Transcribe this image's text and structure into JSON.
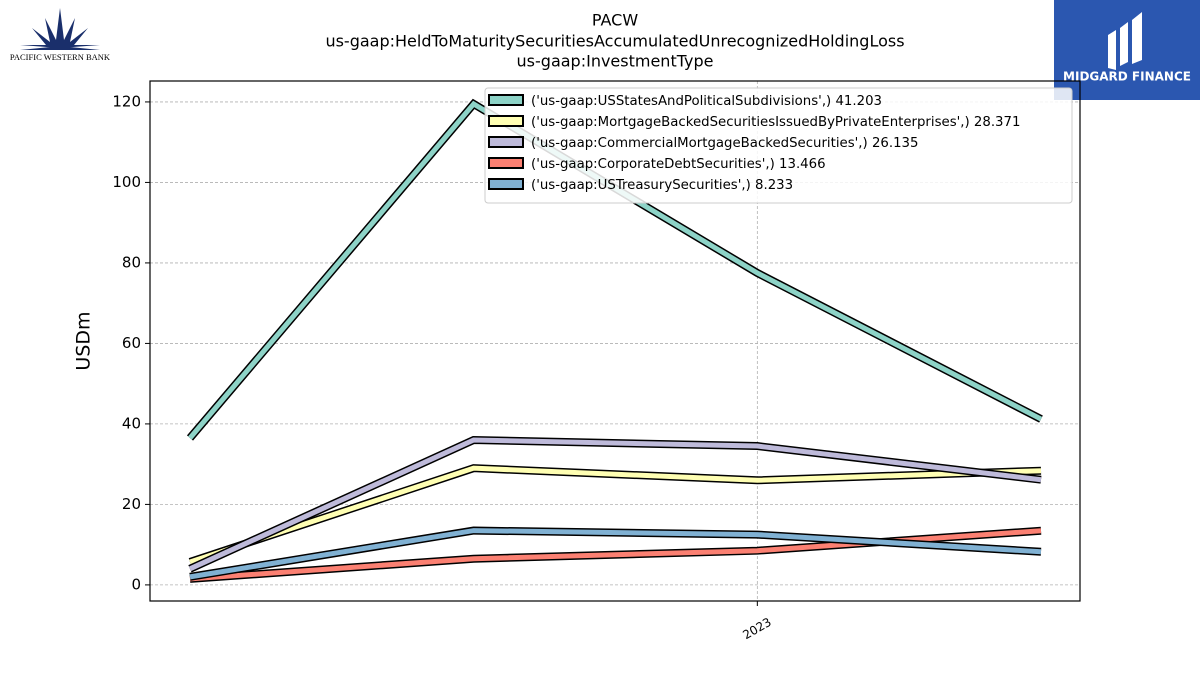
{
  "logos": {
    "left": "PACIFIC WESTERN BANK",
    "right": "MIDGARD FINANCE"
  },
  "chart_data": {
    "type": "line",
    "title": [
      "PACW",
      "us-gaap:HeldToMaturitySecuritiesAccumulatedUnrecognizedHoldingLoss",
      "us-gaap:InvestmentType"
    ],
    "y_label": "USDm",
    "categories": [
      null,
      null,
      "2023",
      null
    ],
    "series": [
      {
        "name": "('us-gaap:USStatesAndPoliticalSubdivisions',) 41.203",
        "color": "#8dd3c7",
        "values": [
          36.5,
          119.5,
          77.5,
          41.203
        ]
      },
      {
        "name": "('us-gaap:MortgageBackedSecuritiesIssuedByPrivateEnterprises',) 28.371",
        "color": "#ffffb3",
        "values": [
          5.7,
          29,
          26,
          28.371
        ]
      },
      {
        "name": "('us-gaap:CommercialMortgageBackedSecurities',) 26.135",
        "color": "#bebada",
        "values": [
          4,
          36,
          34.5,
          26.135
        ]
      },
      {
        "name": "('us-gaap:CorporateDebtSecurities',) 13.466",
        "color": "#fb8072",
        "values": [
          1.5,
          6.5,
          8.5,
          13.466
        ]
      },
      {
        "name": "('us-gaap:USTreasurySecurities',) 8.233",
        "color": "#80b1d3",
        "values": [
          2,
          13.5,
          12.5,
          8.233
        ]
      }
    ],
    "ylim": [
      -4,
      125.2
    ],
    "yticks": [
      0,
      20,
      40,
      60,
      80,
      100,
      120
    ],
    "grid": true,
    "legend": "upper right"
  }
}
